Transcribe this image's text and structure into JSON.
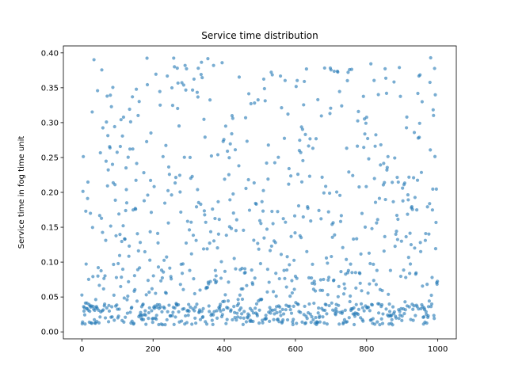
{
  "chart_data": {
    "type": "scatter",
    "title": "Service time distribution",
    "xlabel": "",
    "ylabel": "Service time in fog time unit",
    "xlim": [
      -52,
      1052
    ],
    "ylim": [
      -0.01,
      0.41
    ],
    "x_ticks": [
      0,
      200,
      400,
      600,
      800,
      1000
    ],
    "y_ticks": [
      0.0,
      0.05,
      0.1,
      0.15,
      0.2,
      0.25,
      0.3,
      0.35,
      0.4
    ],
    "y_tick_labels": [
      "0.00",
      "0.05",
      "0.10",
      "0.15",
      "0.20",
      "0.25",
      "0.30",
      "0.35",
      "0.40"
    ],
    "grid": false,
    "point_color": "#1f77b4",
    "point_count": 1000,
    "x": [],
    "y": []
  }
}
